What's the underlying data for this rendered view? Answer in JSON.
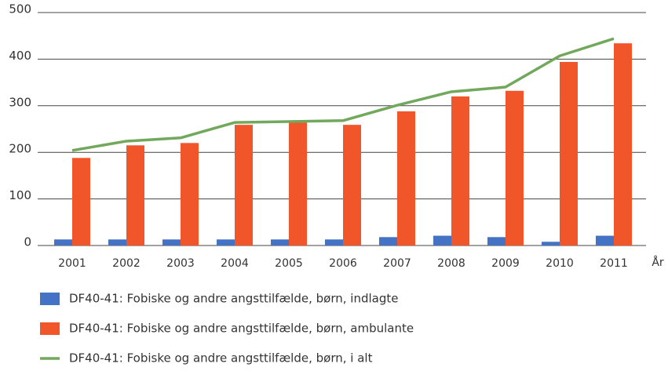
{
  "chart_data": {
    "type": "bar_line",
    "x_label": "År",
    "categories": [
      "2001",
      "2002",
      "2003",
      "2004",
      "2005",
      "2006",
      "2007",
      "2008",
      "2009",
      "2010",
      "2011"
    ],
    "series": [
      {
        "name": "DF40-41: Fobiske og andre angsttilfælde, børn, indlagte",
        "type": "bar",
        "color": "#4472c4",
        "values": [
          13,
          13,
          13,
          13,
          13,
          13,
          18,
          21,
          18,
          8,
          21
        ]
      },
      {
        "name": "DF40-41: Fobiske og andre angsttilfælde, børn, ambulante",
        "type": "bar",
        "color": "#f1552a",
        "values": [
          188,
          215,
          220,
          259,
          264,
          259,
          288,
          320,
          332,
          394,
          434
        ]
      },
      {
        "name": "DF40-41: Fobiske og andre angsttilfælde, børn, i alt",
        "type": "line",
        "color": "#72a85c",
        "values": [
          204,
          224,
          231,
          264,
          266,
          268,
          301,
          330,
          340,
          407,
          444
        ]
      }
    ],
    "ylim": [
      0,
      500
    ],
    "yticks": [
      0,
      100,
      200,
      300,
      400,
      500
    ],
    "grid": true
  }
}
